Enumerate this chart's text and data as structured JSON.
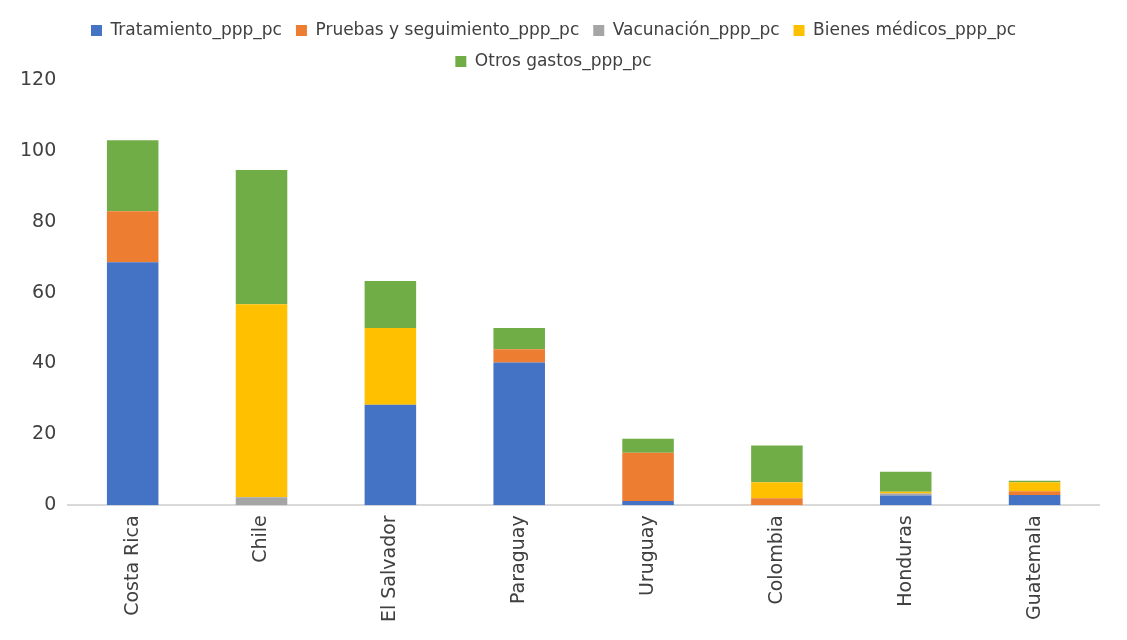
{
  "chart_data": {
    "type": "bar",
    "stacked": true,
    "categories": [
      "Costa Rica",
      "Chile",
      "El Salvador",
      "Paraguay",
      "Uruguay",
      "Colombia",
      "Honduras",
      "Guatemala"
    ],
    "series": [
      {
        "name": "Tratamiento_ppp_pc",
        "color": "#4472c4",
        "values": [
          68.6,
          0,
          28.4,
          40.3,
          1.2,
          0,
          2.8,
          2.9
        ]
      },
      {
        "name": "Pruebas y seguimiento_ppp_pc",
        "color": "#ed7d31",
        "values": [
          14.4,
          0,
          0,
          3.7,
          13.6,
          2.0,
          0,
          1.1
        ]
      },
      {
        "name": "Vacunación_ppp_pc",
        "color": "#a5a5a5",
        "values": [
          0,
          2.3,
          0,
          0,
          0,
          0,
          0.5,
          0
        ]
      },
      {
        "name": "Bienes médicos_ppp_pc",
        "color": "#ffc000",
        "values": [
          0,
          54.4,
          21.6,
          0,
          0,
          4.5,
          0.5,
          2.5
        ]
      },
      {
        "name": "Otros gastos_ppp_pc",
        "color": "#70ad47",
        "values": [
          20.0,
          37.9,
          13.3,
          6.0,
          4.0,
          10.4,
          5.7,
          0.4
        ]
      }
    ],
    "ylim": [
      0,
      120
    ],
    "yticks": [
      0,
      20,
      40,
      60,
      80,
      100,
      120
    ],
    "grid": false,
    "legend": "top"
  }
}
